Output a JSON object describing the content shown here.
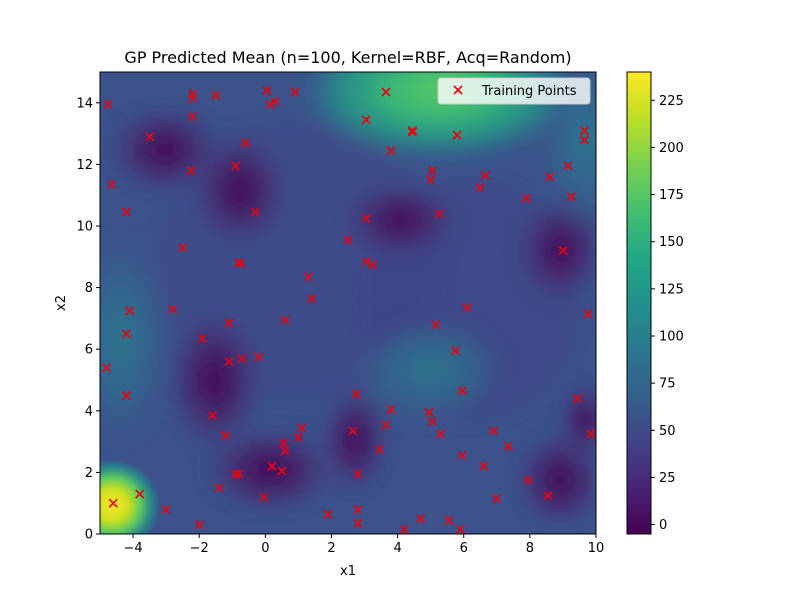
{
  "chart_data": {
    "type": "scatter",
    "title": "GP Predicted Mean (n=100, Kernel=RBF, Acq=Random)",
    "xlabel": "x1",
    "ylabel": "x2",
    "xlim": [
      -5,
      10
    ],
    "ylim": [
      0,
      15
    ],
    "x_ticks": [
      "−4",
      "−2",
      "0",
      "2",
      "4",
      "6",
      "8",
      "10"
    ],
    "y_ticks": [
      "0",
      "2",
      "4",
      "6",
      "8",
      "10",
      "12",
      "14"
    ],
    "background": "filled contour of GP predicted mean (viridis colormap)",
    "colorbar": {
      "range": [
        -5,
        240
      ],
      "ticks": [
        "0",
        "25",
        "50",
        "75",
        "100",
        "125",
        "150",
        "175",
        "200",
        "225"
      ],
      "colormap": "viridis"
    },
    "legend": {
      "placement": "top-right",
      "entries": [
        "Training Points"
      ]
    },
    "series": [
      {
        "name": "Training Points",
        "marker": "x",
        "color": "#e8000b",
        "points": [
          [
            -4.75,
            13.95
          ],
          [
            -4.65,
            11.35
          ],
          [
            -4.8,
            5.4
          ],
          [
            -4.6,
            1.0
          ],
          [
            -4.2,
            10.45
          ],
          [
            -4.1,
            7.25
          ],
          [
            -4.2,
            6.5
          ],
          [
            -4.2,
            4.5
          ],
          [
            -3.8,
            1.3
          ],
          [
            -3.5,
            12.9
          ],
          [
            -3.0,
            0.8
          ],
          [
            -2.8,
            7.3
          ],
          [
            -2.5,
            9.3
          ],
          [
            -2.2,
            14.3
          ],
          [
            -2.2,
            14.15
          ],
          [
            -2.2,
            13.55
          ],
          [
            -2.25,
            11.8
          ],
          [
            -2.0,
            0.3
          ],
          [
            -1.9,
            6.35
          ],
          [
            -1.6,
            3.85
          ],
          [
            -1.5,
            14.25
          ],
          [
            -1.4,
            1.5
          ],
          [
            -1.2,
            3.2
          ],
          [
            -1.1,
            6.85
          ],
          [
            -1.1,
            5.6
          ],
          [
            -0.9,
            1.95
          ],
          [
            -0.8,
            1.95
          ],
          [
            -0.9,
            11.95
          ],
          [
            -0.8,
            8.8
          ],
          [
            -0.75,
            8.8
          ],
          [
            -0.7,
            5.7
          ],
          [
            -0.6,
            12.7
          ],
          [
            -0.3,
            10.45
          ],
          [
            -0.2,
            5.75
          ],
          [
            -0.05,
            1.2
          ],
          [
            0.05,
            14.4
          ],
          [
            0.15,
            13.95
          ],
          [
            0.3,
            14.05
          ],
          [
            0.2,
            2.2
          ],
          [
            0.5,
            2.05
          ],
          [
            0.55,
            2.95
          ],
          [
            0.6,
            2.7
          ],
          [
            0.6,
            6.95
          ],
          [
            0.9,
            14.35
          ],
          [
            1.0,
            3.15
          ],
          [
            1.1,
            3.45
          ],
          [
            1.3,
            8.35
          ],
          [
            1.4,
            7.65
          ],
          [
            1.9,
            0.65
          ],
          [
            2.5,
            9.55
          ],
          [
            2.65,
            3.35
          ],
          [
            2.75,
            4.55
          ],
          [
            2.8,
            1.95
          ],
          [
            2.8,
            0.8
          ],
          [
            2.8,
            0.35
          ],
          [
            3.05,
            13.45
          ],
          [
            3.05,
            10.25
          ],
          [
            3.05,
            8.85
          ],
          [
            3.25,
            8.75
          ],
          [
            3.45,
            2.75
          ],
          [
            3.65,
            14.35
          ],
          [
            3.65,
            3.55
          ],
          [
            3.8,
            4.05
          ],
          [
            3.8,
            12.45
          ],
          [
            4.2,
            0.15
          ],
          [
            4.45,
            13.1
          ],
          [
            4.45,
            13.05
          ],
          [
            4.7,
            0.5
          ],
          [
            4.95,
            3.95
          ],
          [
            5.05,
            11.8
          ],
          [
            5.0,
            11.5
          ],
          [
            5.05,
            3.65
          ],
          [
            5.15,
            6.8
          ],
          [
            5.25,
            10.4
          ],
          [
            5.3,
            3.25
          ],
          [
            5.55,
            0.45
          ],
          [
            5.75,
            5.95
          ],
          [
            5.8,
            12.95
          ],
          [
            5.9,
            0.15
          ],
          [
            5.95,
            4.65
          ],
          [
            5.95,
            2.55
          ],
          [
            6.1,
            7.35
          ],
          [
            6.5,
            11.25
          ],
          [
            6.6,
            2.2
          ],
          [
            6.65,
            11.65
          ],
          [
            6.9,
            3.35
          ],
          [
            7.0,
            1.15
          ],
          [
            7.35,
            2.85
          ],
          [
            7.9,
            10.9
          ],
          [
            7.95,
            1.75
          ],
          [
            8.55,
            1.25
          ],
          [
            8.6,
            11.6
          ],
          [
            9.0,
            9.2
          ],
          [
            9.15,
            11.95
          ],
          [
            9.25,
            10.95
          ],
          [
            9.45,
            4.4
          ],
          [
            9.65,
            13.1
          ],
          [
            9.65,
            12.8
          ],
          [
            9.75,
            7.15
          ],
          [
            9.85,
            3.25
          ]
        ]
      }
    ]
  }
}
